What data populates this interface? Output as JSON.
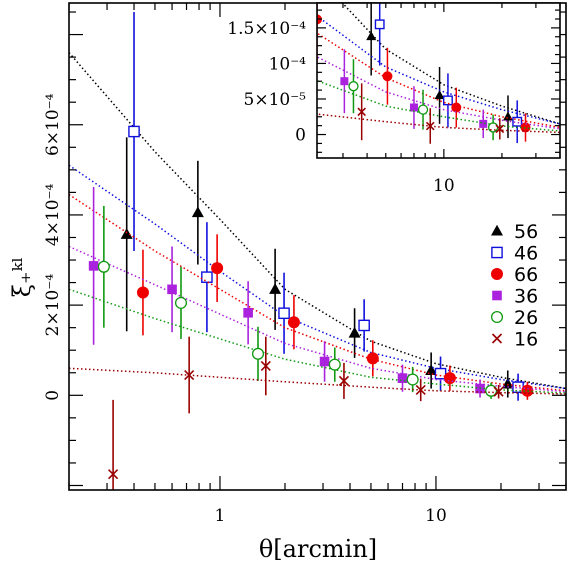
{
  "chart_data": {
    "type": "scatter",
    "title": "",
    "xlabel": "θ[arcmin]",
    "ylabel": "ξ₊ᵏˡ",
    "xscale": "log",
    "xlim": [
      0.2,
      40
    ],
    "ylim": [
      -0.00021,
      0.00087
    ],
    "grid": false,
    "legend_position": "right",
    "x_ticks": [
      {
        "value": 1,
        "label": "1"
      },
      {
        "value": 10,
        "label": "10"
      }
    ],
    "y_ticks": [
      {
        "value": 0,
        "label": "0"
      },
      {
        "value": 0.0002,
        "label": "2×10⁻⁴"
      },
      {
        "value": 0.0004,
        "label": "4×10⁻⁴"
      },
      {
        "value": 0.0006,
        "label": "6×10⁻⁴"
      }
    ],
    "series": [
      {
        "name": "56",
        "color": "#000000",
        "marker": "filled-triangle",
        "x": [
          0.37,
          0.79,
          1.8,
          4.2,
          9.5,
          21.5
        ],
        "y": [
          0.000357,
          0.000405,
          0.000235,
          0.000138,
          5.5e-05,
          2.5e-05
        ],
        "yerr": [
          0.000215,
          0.000115,
          9e-05,
          5.5e-05,
          4e-05,
          3e-05
        ],
        "model_curve": [
          [
            0.2,
            0.00076
          ],
          [
            0.5,
            0.00054
          ],
          [
            1,
            0.00039
          ],
          [
            2,
            0.000235
          ],
          [
            5,
            0.00012
          ],
          [
            10,
            7e-05
          ],
          [
            20,
            4e-05
          ],
          [
            40,
            1.5e-05
          ]
        ]
      },
      {
        "name": "46",
        "color": "#1010dd",
        "marker": "open-square",
        "x": [
          0.4,
          0.87,
          1.98,
          4.65,
          10.5,
          24.0
        ],
        "y": [
          0.000585,
          0.000262,
          0.000182,
          0.000155,
          4.8e-05,
          1.8e-05
        ],
        "yerr": [
          0.000265,
          0.000122,
          9e-05,
          5.8e-05,
          3.8e-05,
          3e-05
        ],
        "model_curve": [
          [
            0.2,
            0.00051
          ],
          [
            0.5,
            0.00038
          ],
          [
            1,
            0.000275
          ],
          [
            2,
            0.000175
          ],
          [
            5,
            9.5e-05
          ],
          [
            10,
            6e-05
          ],
          [
            20,
            3.5e-05
          ],
          [
            40,
            1.5e-05
          ]
        ]
      },
      {
        "name": "66",
        "color": "#ee0000",
        "marker": "filled-circle",
        "x": [
          0.44,
          0.97,
          2.2,
          5.1,
          11.6,
          26.5
        ],
        "y": [
          0.000228,
          0.000282,
          0.000162,
          8.2e-05,
          3.8e-05,
          1e-05
        ],
        "yerr": [
          9.5e-05,
          7.5e-05,
          6e-05,
          4e-05,
          2.8e-05,
          2e-05
        ],
        "model_curve": [
          [
            0.2,
            0.000445
          ],
          [
            0.5,
            0.00032
          ],
          [
            1,
            0.000235
          ],
          [
            2,
            0.00015
          ],
          [
            5,
            8e-05
          ],
          [
            10,
            4.5e-05
          ],
          [
            20,
            2.5e-05
          ],
          [
            40,
            1e-05
          ]
        ]
      },
      {
        "name": "36",
        "color": "#aa22dd",
        "marker": "filled-square",
        "x": [
          0.26,
          0.6,
          1.35,
          3.05,
          7.0,
          16.0
        ],
        "y": [
          0.000287,
          0.000235,
          0.000183,
          7.5e-05,
          3.8e-05,
          1.5e-05
        ],
        "yerr": [
          0.000175,
          9.5e-05,
          7e-05,
          4.5e-05,
          3e-05,
          2e-05
        ],
        "model_curve": [
          [
            0.2,
            0.00033
          ],
          [
            0.5,
            0.000245
          ],
          [
            1,
            0.00018
          ],
          [
            2,
            0.000115
          ],
          [
            5,
            6e-05
          ],
          [
            10,
            3.5e-05
          ],
          [
            20,
            2e-05
          ],
          [
            40,
            8e-06
          ]
        ]
      },
      {
        "name": "26",
        "color": "#119911",
        "marker": "open-circle",
        "x": [
          0.29,
          0.66,
          1.5,
          3.4,
          7.8,
          18.0
        ],
        "y": [
          0.000285,
          0.000205,
          9.2e-05,
          6.8e-05,
          3.5e-05,
          1e-05
        ],
        "yerr": [
          0.000135,
          8e-05,
          6e-05,
          3.8e-05,
          2.8e-05,
          1.8e-05
        ],
        "model_curve": [
          [
            0.2,
            0.000235
          ],
          [
            0.5,
            0.00017
          ],
          [
            1,
            0.000125
          ],
          [
            2,
            8e-05
          ],
          [
            5,
            4e-05
          ],
          [
            10,
            2.5e-05
          ],
          [
            20,
            1.2e-05
          ],
          [
            40,
            5e-06
          ]
        ]
      },
      {
        "name": "16",
        "color": "#990000",
        "marker": "cross",
        "x": [
          0.32,
          0.72,
          1.63,
          3.75,
          8.5,
          19.5
        ],
        "y": [
          -0.000175,
          4.5e-05,
          6.5e-05,
          3.2e-05,
          1.2e-05,
          8e-06
        ],
        "yerr": [
          0.000165,
          8.5e-05,
          6.5e-05,
          4e-05,
          2.5e-05,
          1.5e-05
        ],
        "model_curve": [
          [
            0.2,
            6e-05
          ],
          [
            0.5,
            5e-05
          ],
          [
            1,
            4e-05
          ],
          [
            2,
            3e-05
          ],
          [
            5,
            1.8e-05
          ],
          [
            10,
            1e-05
          ],
          [
            20,
            6e-06
          ],
          [
            40,
            3e-06
          ]
        ]
      }
    ],
    "inset": {
      "xscale": "log",
      "xlim": [
        2.2,
        40
      ],
      "ylim": [
        -3.3e-05,
        0.000185
      ],
      "x_ticks": [
        {
          "value": 10,
          "label": "10"
        }
      ],
      "y_ticks": [
        {
          "value": 0,
          "label": "0"
        },
        {
          "value": 5e-05,
          "label": "5×10⁻⁵"
        },
        {
          "value": 0.0001,
          "label": "10⁻⁴"
        },
        {
          "value": 0.00015,
          "label": "1.5×10⁻⁴"
        }
      ]
    }
  }
}
